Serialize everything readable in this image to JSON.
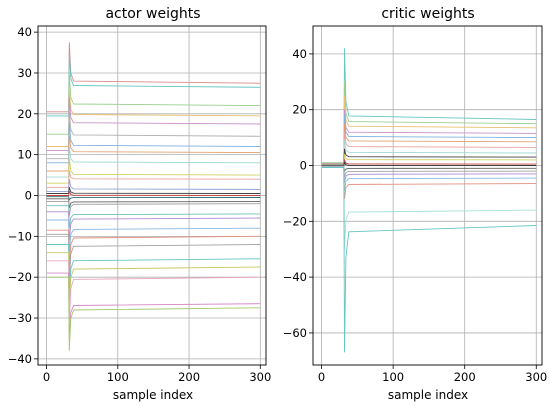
{
  "chart_data": [
    {
      "type": "line",
      "title": "actor weights",
      "xlabel": "sample index",
      "ylabel": "",
      "xlim": [
        -12,
        308
      ],
      "ylim": [
        -41.5,
        41.5
      ],
      "xticks": [
        0,
        100,
        200,
        300
      ],
      "yticks": [
        -40,
        -30,
        -20,
        -10,
        0,
        10,
        20,
        30,
        40
      ],
      "grid": true,
      "transition_index": 32,
      "x_end": 300,
      "series": [
        {
          "start": 20.5,
          "spike": 37.5,
          "final": 27.5,
          "color": "#d88a8a"
        },
        {
          "start": 19.5,
          "spike": 35.0,
          "final": 26.5,
          "color": "#66c6c0"
        },
        {
          "start": 15.0,
          "spike": 30.0,
          "final": 22.0,
          "color": "#9ad08e"
        },
        {
          "start": 12.0,
          "spike": 26.0,
          "final": 19.5,
          "color": "#e8c070"
        },
        {
          "start": 11.0,
          "spike": 24.0,
          "final": 17.5,
          "color": "#c890c8"
        },
        {
          "start": 9.0,
          "spike": 21.0,
          "final": 14.5,
          "color": "#b0b0b0"
        },
        {
          "start": 8.0,
          "spike": 18.0,
          "final": 12.0,
          "color": "#7fb0e0"
        },
        {
          "start": 6.0,
          "spike": 15.0,
          "final": 10.5,
          "color": "#e0a070"
        },
        {
          "start": 4.5,
          "spike": 12.0,
          "final": 8.0,
          "color": "#a0d8d0"
        },
        {
          "start": 3.0,
          "spike": 9.0,
          "final": 5.0,
          "color": "#d0d060"
        },
        {
          "start": 2.0,
          "spike": 6.0,
          "final": 4.0,
          "color": "#e8a0a0"
        },
        {
          "start": 1.0,
          "spike": 4.0,
          "final": 1.5,
          "color": "#90a0d8"
        },
        {
          "start": 0.5,
          "spike": 2.0,
          "final": 0.5,
          "color": "#404040"
        },
        {
          "start": 0.0,
          "spike": 1.0,
          "final": 0.0,
          "color": "#c04040"
        },
        {
          "start": -0.3,
          "spike": -1.0,
          "final": -0.5,
          "color": "#307070"
        },
        {
          "start": -0.8,
          "spike": -3.0,
          "final": -1.5,
          "color": "#606060"
        },
        {
          "start": -1.5,
          "spike": -5.0,
          "final": -2.0,
          "color": "#a0a0a0"
        },
        {
          "start": -2.5,
          "spike": -8.0,
          "final": -4.5,
          "color": "#70c0b8"
        },
        {
          "start": -4.0,
          "spike": -11.0,
          "final": -5.5,
          "color": "#b08ad0"
        },
        {
          "start": -6.0,
          "spike": -14.0,
          "final": -8.0,
          "color": "#88b8e0"
        },
        {
          "start": -8.5,
          "spike": -18.0,
          "final": -10.0,
          "color": "#e09080"
        },
        {
          "start": -9.5,
          "spike": -21.0,
          "final": -12.0,
          "color": "#a0a0a0"
        },
        {
          "start": -12.0,
          "spike": -25.0,
          "final": -15.5,
          "color": "#66c6c0"
        },
        {
          "start": -14.0,
          "spike": -28.0,
          "final": -17.5,
          "color": "#c8c860"
        },
        {
          "start": -16.0,
          "spike": -31.0,
          "final": -20.0,
          "color": "#e8a8c0"
        },
        {
          "start": -19.0,
          "spike": -35.0,
          "final": -26.5,
          "color": "#d888c8"
        },
        {
          "start": -20.0,
          "spike": -38.0,
          "final": -27.5,
          "color": "#a8c870"
        }
      ]
    },
    {
      "type": "line",
      "title": "critic weights",
      "xlabel": "sample index",
      "ylabel": "",
      "xlim": [
        -12,
        308
      ],
      "ylim": [
        -71.5,
        50
      ],
      "xticks": [
        0,
        100,
        200,
        300
      ],
      "yticks": [
        -60,
        -40,
        -20,
        0,
        20,
        40
      ],
      "grid": true,
      "transition_index": 32,
      "x_end": 300,
      "series": [
        {
          "start": 1.0,
          "spike": 42.0,
          "final": 16.5,
          "color": "#66c6c0"
        },
        {
          "start": 0.9,
          "spike": 30.0,
          "final": 15.0,
          "color": "#9ad08e"
        },
        {
          "start": 0.8,
          "spike": 25.0,
          "final": 13.5,
          "color": "#e8c070"
        },
        {
          "start": 0.7,
          "spike": 20.0,
          "final": 11.5,
          "color": "#c890c8"
        },
        {
          "start": 0.6,
          "spike": 18.0,
          "final": 10.0,
          "color": "#7fb0e0"
        },
        {
          "start": 0.5,
          "spike": 15.0,
          "final": 8.5,
          "color": "#e0a070"
        },
        {
          "start": 0.4,
          "spike": 12.0,
          "final": 6.5,
          "color": "#e8a0a0"
        },
        {
          "start": 0.3,
          "spike": 9.0,
          "final": 4.5,
          "color": "#a0d8d0"
        },
        {
          "start": 0.2,
          "spike": 6.0,
          "final": 3.0,
          "color": "#404040"
        },
        {
          "start": 0.1,
          "spike": 4.0,
          "final": 2.0,
          "color": "#d0d060"
        },
        {
          "start": 0.0,
          "spike": 2.0,
          "final": 0.5,
          "color": "#c04040"
        },
        {
          "start": 0.0,
          "spike": 1.0,
          "final": 0.0,
          "color": "#303030"
        },
        {
          "start": -0.1,
          "spike": -2.0,
          "final": -1.0,
          "color": "#606060"
        },
        {
          "start": -0.2,
          "spike": -4.0,
          "final": -2.0,
          "color": "#a0a0a0"
        },
        {
          "start": -0.3,
          "spike": -6.0,
          "final": -3.0,
          "color": "#b08ad0"
        },
        {
          "start": -0.4,
          "spike": -9.0,
          "final": -4.5,
          "color": "#88b8e0"
        },
        {
          "start": -0.5,
          "spike": -12.0,
          "final": -6.5,
          "color": "#e09080"
        },
        {
          "start": -0.6,
          "spike": -30.0,
          "final": -16.0,
          "color": "#a8e0d8"
        },
        {
          "start": -0.7,
          "spike": -67.0,
          "final": -21.5,
          "color": "#66c6c0"
        }
      ]
    }
  ]
}
